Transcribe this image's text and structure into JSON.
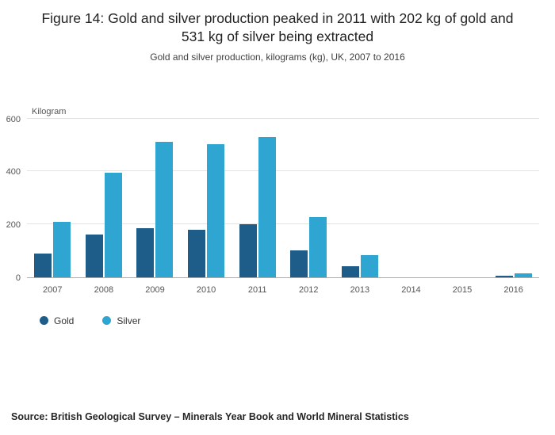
{
  "header": {
    "title": "Figure 14: Gold and silver production peaked in 2011 with 202 kg of gold and 531 kg of silver being extracted",
    "subtitle": "Gold and silver production, kilograms (kg), UK, 2007 to 2016"
  },
  "chart_data": {
    "type": "bar",
    "title": "Figure 14: Gold and silver production peaked in 2011 with 202 kg of gold and 531 kg of silver being extracted",
    "subtitle": "Gold and silver production, kilograms (kg), UK, 2007 to 2016",
    "unit_label": "Kilogram",
    "categories": [
      "2007",
      "2008",
      "2009",
      "2010",
      "2011",
      "2012",
      "2013",
      "2014",
      "2015",
      "2016"
    ],
    "series": [
      {
        "name": "Gold",
        "color": "#1e5c8a",
        "values": [
          90,
          160,
          186,
          178,
          202,
          100,
          40,
          0,
          0,
          5
        ]
      },
      {
        "name": "Silver",
        "color": "#2fa6d1",
        "values": [
          210,
          397,
          513,
          504,
          531,
          228,
          82,
          0,
          0,
          13
        ]
      }
    ],
    "ylim": [
      0,
      600
    ],
    "yticks": [
      0,
      200,
      400,
      600
    ],
    "grid": true,
    "legend_position": "bottom-left"
  },
  "footer": {
    "source": "Source: British Geological Survey – Minerals Year Book and World Mineral Statistics"
  }
}
